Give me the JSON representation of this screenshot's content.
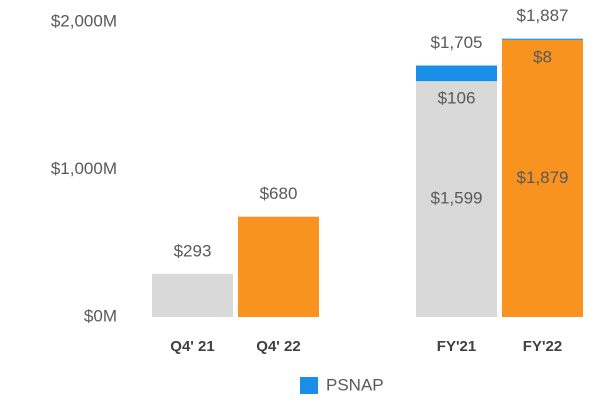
{
  "chart_data": {
    "type": "stacked_bar",
    "categories": [
      "Q4' 21",
      "Q4' 22",
      "FY'21",
      "FY'22"
    ],
    "series": [
      {
        "colors": [
          "#d9d9d9",
          "#f7931e",
          "#d9d9d9",
          "#f7931e"
        ],
        "values": [
          293,
          680,
          1599,
          1879
        ],
        "value_labels": [
          "$293",
          "$680",
          "$1,599",
          "$1,879"
        ]
      },
      {
        "name": "PSNAP",
        "color": "#1a8fe8",
        "values": [
          null,
          null,
          106,
          8
        ],
        "value_labels": [
          null,
          null,
          "$106",
          "$8"
        ]
      }
    ],
    "totals": [
      null,
      null,
      1705,
      1887
    ],
    "total_labels": [
      null,
      null,
      "$1,705",
      "$1,887"
    ],
    "ylim": [
      0,
      2000
    ],
    "yticks": [
      {
        "value": 0,
        "label": "$0M"
      },
      {
        "value": 1000,
        "label": "$1,000M"
      },
      {
        "value": 2000,
        "label": "$2,000M"
      }
    ],
    "grid": false,
    "legend": "bottom"
  }
}
